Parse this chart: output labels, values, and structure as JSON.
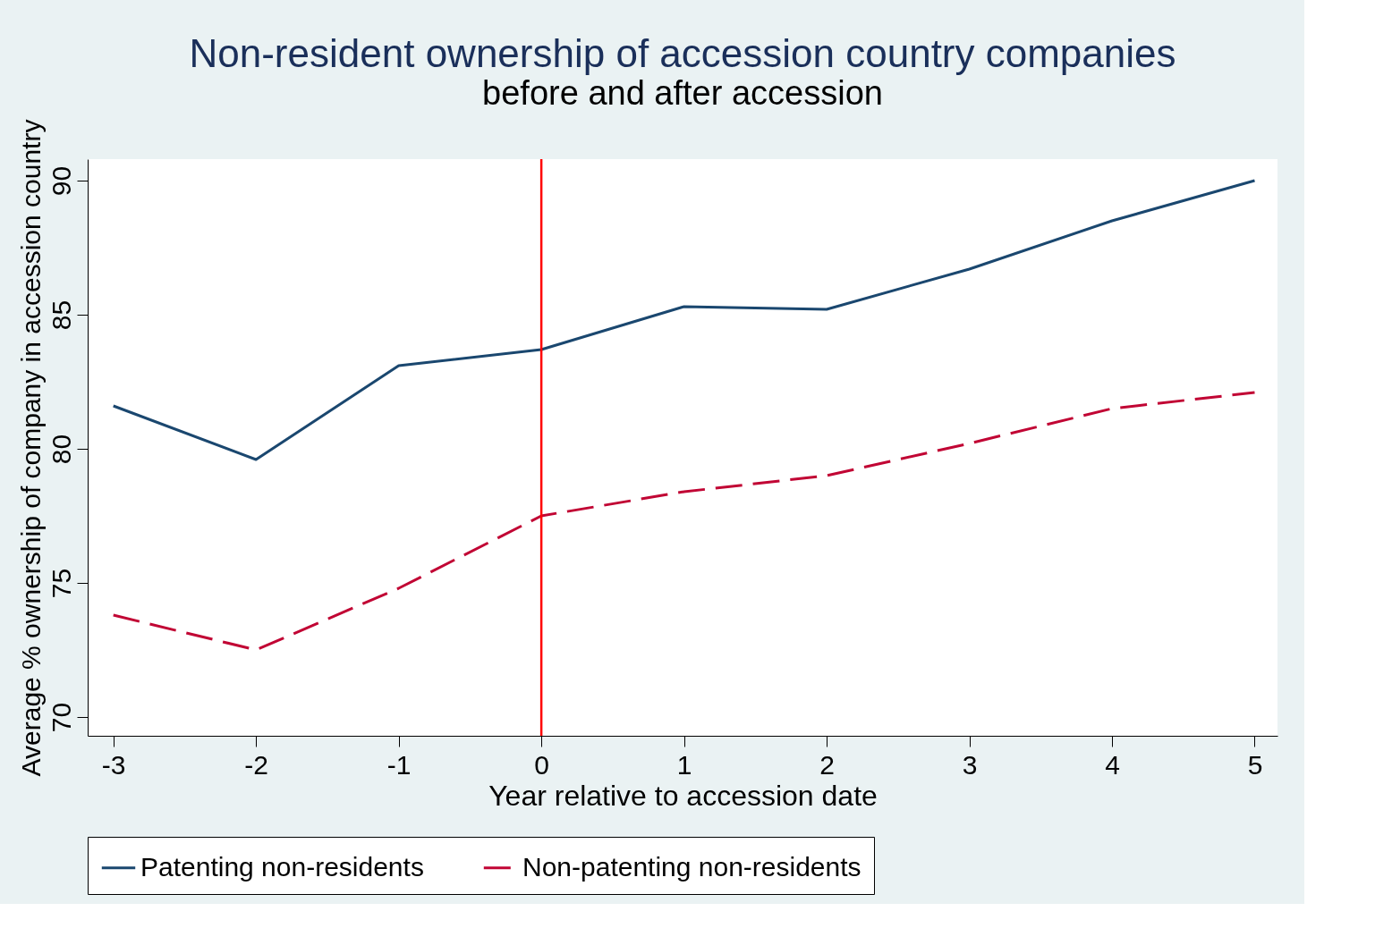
{
  "chart_data": {
    "type": "line",
    "title": "Non-resident ownership of accession country companies",
    "subtitle": "before and after accession",
    "xlabel": "Year relative to accession date",
    "ylabel": "Average % ownership of company in accession country",
    "x": [
      -3,
      -2,
      -1,
      0,
      1,
      2,
      3,
      4,
      5
    ],
    "series": [
      {
        "name": "Patenting non-residents",
        "color": "#1a476f",
        "line_style": "solid",
        "values": [
          81.6,
          79.6,
          83.1,
          83.7,
          85.3,
          85.2,
          86.7,
          88.5,
          90.0
        ]
      },
      {
        "name": "Non-patenting non-residents",
        "color": "#c10534",
        "line_style": "dashed",
        "values": [
          73.8,
          72.5,
          74.8,
          77.5,
          78.4,
          79.0,
          80.2,
          81.5,
          82.1
        ]
      }
    ],
    "xlim": [
      -3.18,
      5.16
    ],
    "xticks": [
      -3,
      -2,
      -1,
      0,
      1,
      2,
      3,
      4,
      5
    ],
    "ylim": [
      69.3,
      90.8
    ],
    "yticks": [
      70,
      75,
      80,
      85,
      90
    ],
    "ref_lines": [
      {
        "axis": "x",
        "value": 0,
        "color": "#ff0000"
      }
    ],
    "grid": false,
    "legend": "bottom",
    "marker": "none"
  }
}
